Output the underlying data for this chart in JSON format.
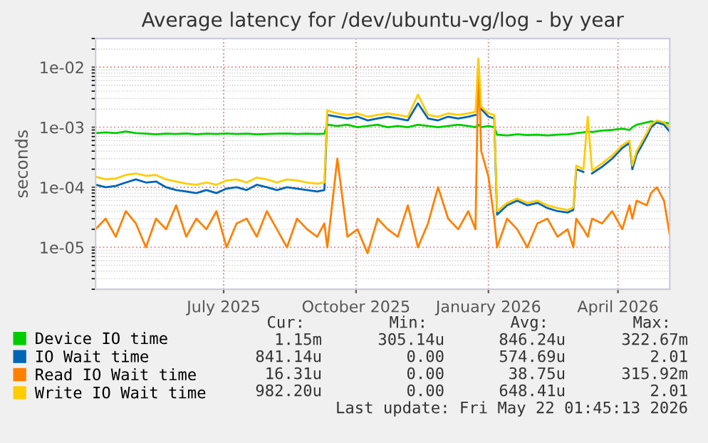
{
  "chart_data": {
    "type": "line",
    "title": "Average latency for /dev/ubuntu-vg/log - by year",
    "ylabel": "seconds",
    "log": "y",
    "x": [
      "2025-04-18",
      "2025-04-25",
      "2025-05-02",
      "2025-05-09",
      "2025-05-16",
      "2025-05-23",
      "2025-05-30",
      "2025-06-06",
      "2025-06-13",
      "2025-06-20",
      "2025-06-27",
      "2025-07-04",
      "2025-07-11",
      "2025-07-18",
      "2025-07-25",
      "2025-08-01",
      "2025-08-08",
      "2025-08-15",
      "2025-08-22",
      "2025-08-29",
      "2025-09-05",
      "2025-09-12",
      "2025-09-19",
      "2025-09-24",
      "2025-09-26",
      "2025-10-03",
      "2025-10-10",
      "2025-10-17",
      "2025-10-24",
      "2025-10-31",
      "2025-11-07",
      "2025-11-14",
      "2025-11-21",
      "2025-11-28",
      "2025-12-05",
      "2025-12-12",
      "2025-12-19",
      "2025-12-26",
      "2026-01-02",
      "2026-01-07",
      "2026-01-09",
      "2026-01-11",
      "2026-01-16",
      "2026-01-20",
      "2026-01-22",
      "2026-01-29",
      "2026-02-05",
      "2026-02-12",
      "2026-02-19",
      "2026-02-26",
      "2026-03-05",
      "2026-03-12",
      "2026-03-16",
      "2026-03-18",
      "2026-03-23",
      "2026-03-26",
      "2026-03-29",
      "2026-04-05",
      "2026-04-12",
      "2026-04-19",
      "2026-04-24",
      "2026-04-26",
      "2026-04-29",
      "2026-05-06",
      "2026-05-09",
      "2026-05-13",
      "2026-05-18",
      "2026-05-22"
    ],
    "series": [
      {
        "name": "Device IO time",
        "color": "#00cc00",
        "values": [
          0.0008,
          0.00082,
          0.0008,
          0.00085,
          0.0008,
          0.00078,
          0.00076,
          0.00078,
          0.00077,
          0.00079,
          0.00076,
          0.00078,
          0.00077,
          0.00079,
          0.00077,
          0.00078,
          0.00076,
          0.00077,
          0.00078,
          0.00079,
          0.00077,
          0.00078,
          0.00077,
          0.00078,
          0.0011,
          0.00105,
          0.0011,
          0.001,
          0.00105,
          0.0011,
          0.001,
          0.00105,
          0.001,
          0.0011,
          0.00105,
          0.001,
          0.00105,
          0.0011,
          0.00105,
          0.001,
          0.0011,
          0.001,
          0.00105,
          0.001,
          0.00075,
          0.00073,
          0.00076,
          0.00074,
          0.00075,
          0.00073,
          0.00075,
          0.00076,
          0.00078,
          0.0008,
          0.00082,
          0.00085,
          0.00083,
          0.00088,
          0.0009,
          0.00095,
          0.0009,
          0.001,
          0.0011,
          0.0012,
          0.00125,
          0.0012,
          0.0012,
          0.00115
        ]
      },
      {
        "name": "IO Wait time",
        "color": "#0066b3",
        "values": [
          0.00011,
          0.0001,
          0.000105,
          0.00012,
          0.000135,
          0.00012,
          0.000125,
          0.0001,
          9e-05,
          8.5e-05,
          8e-05,
          9e-05,
          8e-05,
          9.5e-05,
          0.0001,
          9e-05,
          0.00011,
          0.0001,
          9e-05,
          0.0001,
          9.5e-05,
          9e-05,
          8.5e-05,
          9e-05,
          0.0016,
          0.0015,
          0.0014,
          0.0015,
          0.0013,
          0.0014,
          0.0015,
          0.0014,
          0.0013,
          0.0025,
          0.0014,
          0.0013,
          0.0015,
          0.0014,
          0.0015,
          0.0016,
          null,
          0.002,
          0.0015,
          0.0014,
          3.5e-05,
          5e-05,
          6e-05,
          5e-05,
          5.5e-05,
          4.5e-05,
          4e-05,
          3.8e-05,
          4.2e-05,
          0.0002,
          0.00018,
          null,
          0.00017,
          0.00022,
          0.0003,
          0.00045,
          0.00055,
          0.0002,
          0.00035,
          0.0007,
          0.001,
          0.0012,
          0.0011,
          0.00084
        ]
      },
      {
        "name": "Read IO Wait time",
        "color": "#ff8000",
        "values": [
          2e-05,
          3e-05,
          1.5e-05,
          4e-05,
          2.5e-05,
          1e-05,
          3e-05,
          2e-05,
          5e-05,
          1.5e-05,
          3e-05,
          2e-05,
          4e-05,
          1e-05,
          2.5e-05,
          3e-05,
          1.5e-05,
          4e-05,
          2e-05,
          1e-05,
          3e-05,
          2e-05,
          1.5e-05,
          2.5e-05,
          1e-05,
          0.0003,
          1.5e-05,
          2e-05,
          8e-06,
          3e-05,
          2e-05,
          1.5e-05,
          5e-05,
          1e-05,
          2.5e-05,
          0.0001,
          3e-05,
          2e-05,
          4e-05,
          2e-05,
          0.012,
          0.0004,
          0.00015,
          3e-05,
          1e-05,
          3e-05,
          2e-05,
          1e-05,
          2.5e-05,
          3e-05,
          1.5e-05,
          2e-05,
          1e-05,
          3e-05,
          2e-05,
          1.5e-05,
          3e-05,
          2.5e-05,
          4e-05,
          2e-05,
          5e-05,
          3e-05,
          6e-05,
          5e-05,
          8e-05,
          0.0001,
          6e-05,
          1.6e-05
        ]
      },
      {
        "name": "Write IO Wait time",
        "color": "#ffcc00",
        "values": [
          0.00015,
          0.000135,
          0.00014,
          0.00016,
          0.00017,
          0.000155,
          0.00016,
          0.000135,
          0.000125,
          0.000115,
          0.00011,
          0.00012,
          0.00011,
          0.00013,
          0.000135,
          0.00012,
          0.000145,
          0.000135,
          0.00012,
          0.000135,
          0.00013,
          0.00012,
          0.000115,
          0.00012,
          0.0019,
          0.0017,
          0.0016,
          0.0017,
          0.0015,
          0.0016,
          0.0017,
          0.0016,
          0.0015,
          0.0035,
          0.0016,
          0.0015,
          0.0017,
          0.0016,
          0.0017,
          0.0018,
          0.014,
          0.0022,
          0.0017,
          0.0016,
          4e-05,
          5.5e-05,
          6.5e-05,
          5.5e-05,
          6e-05,
          5e-05,
          4.5e-05,
          4.2e-05,
          4.6e-05,
          0.00023,
          0.0002,
          0.0015,
          0.00019,
          0.00025,
          0.00034,
          0.0005,
          0.0006,
          0.00023,
          0.0004,
          0.0008,
          0.0011,
          0.0013,
          0.0012,
          0.00098
        ]
      }
    ],
    "xlim": [
      "2025-04-18",
      "2026-05-22"
    ],
    "xticks": [
      {
        "value": "2025-07-16",
        "label": "July 2025"
      },
      {
        "value": "2025-10-16",
        "label": "October 2025"
      },
      {
        "value": "2026-01-16",
        "label": "January 2026"
      },
      {
        "value": "2026-04-16",
        "label": "April 2026"
      }
    ],
    "ylim": [
      2e-06,
      0.03
    ],
    "yticks": [
      {
        "value": 1e-05,
        "label": "1e-05"
      },
      {
        "value": 0.0001,
        "label": "1e-04"
      },
      {
        "value": 0.001,
        "label": "1e-03"
      },
      {
        "value": 0.01,
        "label": "1e-02"
      }
    ],
    "grid": true,
    "legend": "bottom",
    "marker": "none",
    "line_style": "solid",
    "annotations": [
      "Cur:",
      "Min:",
      "Avg:",
      "Max:",
      "1.15m",
      "305.14u",
      "846.24u",
      "322.67m",
      "841.14u",
      "0.00",
      "574.69u",
      "2.01",
      "16.31u",
      "0.00",
      "38.75u",
      "315.92m",
      "982.20u",
      "0.00",
      "648.41u",
      "2.01",
      "Last update: Fri May 22 01:45:13 2026"
    ]
  }
}
